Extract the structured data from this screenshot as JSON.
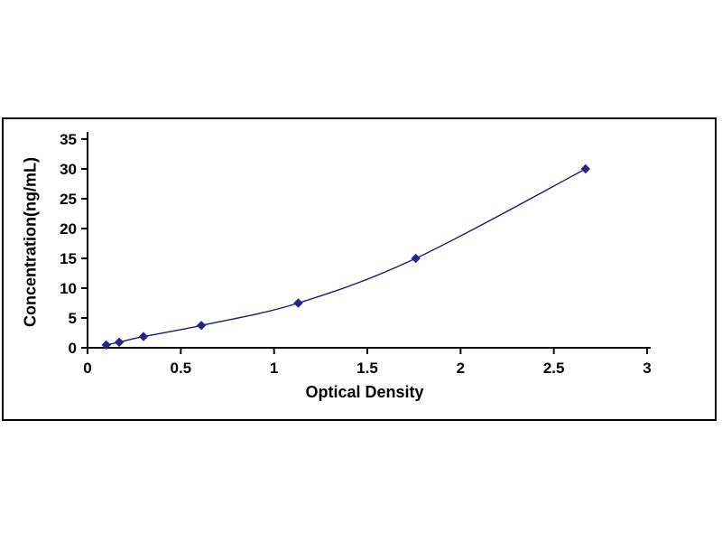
{
  "figure": {
    "border_color": "#000000",
    "background": "#ffffff"
  },
  "chart_data": {
    "type": "line",
    "title": "",
    "xlabel": "Optical Density",
    "ylabel": "Concentration(ng/mL)",
    "xlim": [
      0,
      3
    ],
    "ylim": [
      0,
      35
    ],
    "x_ticks": [
      0,
      0.5,
      1,
      1.5,
      2,
      2.5,
      3
    ],
    "y_ticks": [
      0,
      5,
      10,
      15,
      20,
      25,
      30,
      35
    ],
    "grid": false,
    "legend": null,
    "marker": "diamond",
    "marker_color": "#24248c",
    "line_color": "#1b1b6e",
    "axis_color": "#000000",
    "points": [
      {
        "x": 0.1,
        "y": 0.47
      },
      {
        "x": 0.17,
        "y": 0.94
      },
      {
        "x": 0.3,
        "y": 1.88
      },
      {
        "x": 0.61,
        "y": 3.75
      },
      {
        "x": 1.13,
        "y": 7.5
      },
      {
        "x": 1.76,
        "y": 15
      },
      {
        "x": 2.67,
        "y": 30
      }
    ]
  }
}
